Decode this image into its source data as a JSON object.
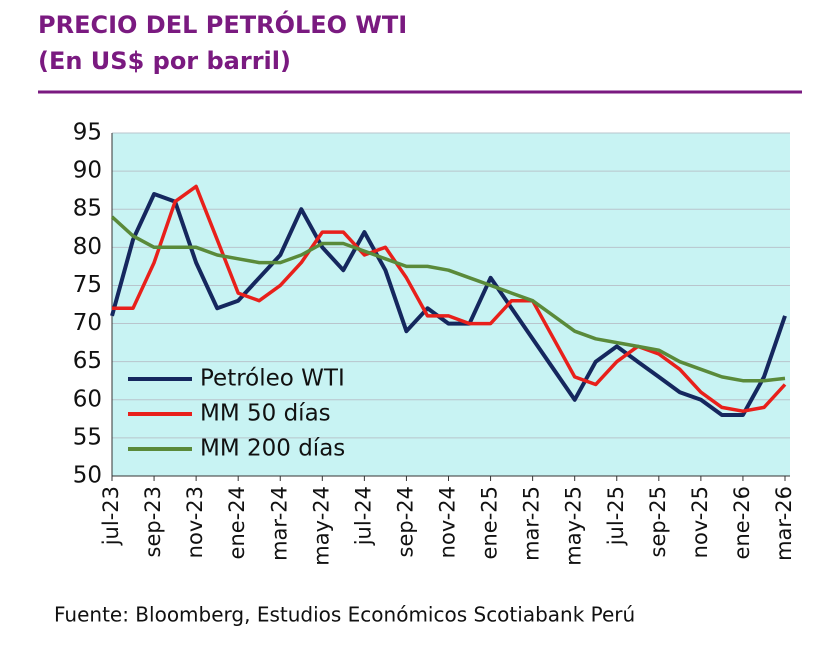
{
  "chart_data": {
    "type": "line",
    "title": "PRECIO DEL PETRÓLEO WTI",
    "subtitle": "(En US$ por barril)",
    "source": "Fuente: Bloomberg, Estudios Económicos Scotiabank Perú",
    "categories": [
      "jul-23",
      null,
      "sep-23",
      null,
      "nov-23",
      null,
      "ene-24",
      null,
      "mar-24",
      null,
      "may-24",
      null,
      "jul-24",
      null,
      "sep-24",
      null,
      "nov-24",
      null,
      "ene-25",
      null,
      "mar-25",
      null,
      "may-25",
      null,
      "jul-25",
      null,
      "sep-25",
      null,
      "nov-25",
      null,
      "ene-26",
      null,
      "mar-26"
    ],
    "series": [
      {
        "name": "Petróleo WTI",
        "color": "#15275e",
        "values": [
          71,
          81,
          87,
          86,
          78,
          72,
          73,
          76,
          79,
          85,
          80,
          77,
          82,
          77,
          69,
          72,
          70,
          70,
          76,
          72,
          68,
          64,
          60,
          65,
          67,
          65,
          63,
          61,
          60,
          58,
          58,
          63,
          71
        ]
      },
      {
        "name": "MM 50 días",
        "color": "#e8201b",
        "values": [
          72,
          72,
          78,
          86,
          88,
          81,
          74,
          73,
          75,
          78,
          82,
          82,
          79,
          80,
          76,
          71,
          71,
          70,
          70,
          73,
          73,
          68,
          63,
          62,
          65,
          67,
          66,
          64,
          61,
          59,
          58.5,
          59,
          62
        ]
      },
      {
        "name": "MM 200 días",
        "color": "#5a8a3a",
        "values": [
          84,
          81.5,
          80,
          80,
          80,
          79,
          78.5,
          78,
          78,
          79,
          80.5,
          80.5,
          79.5,
          78.5,
          77.5,
          77.5,
          77,
          76,
          75,
          74,
          73,
          71,
          69,
          68,
          67.5,
          67,
          66.5,
          65,
          64,
          63,
          62.5,
          62.5,
          62.8
        ]
      }
    ],
    "ylim": [
      50,
      95
    ],
    "yticks": [
      50,
      55,
      60,
      65,
      70,
      75,
      80,
      85,
      90,
      95
    ],
    "grid": true,
    "background": "#c8f3f3",
    "legend": "lower-left"
  }
}
